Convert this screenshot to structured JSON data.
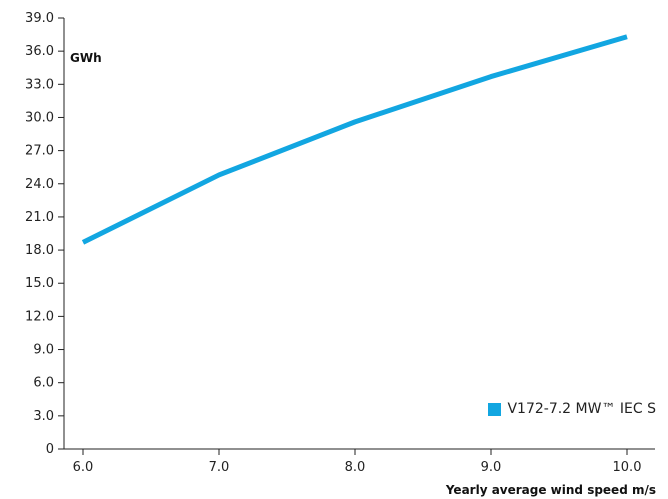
{
  "chart_data": {
    "type": "line",
    "ylabel": "GWh",
    "xlabel": "Yearly average wind speed m/s",
    "x": [
      6.0,
      7.0,
      8.0,
      9.0,
      10.0
    ],
    "x_tick_labels": [
      "6.0",
      "7.0",
      "8.0",
      "9.0",
      "10.0"
    ],
    "y_tick_labels": [
      "0",
      "3.0",
      "6.0",
      "9.0",
      "12.0",
      "15.0",
      "18.0",
      "21.0",
      "24.0",
      "27.0",
      "30.0",
      "33.0",
      "36.0",
      "39.0"
    ],
    "y_ticks": [
      0,
      3,
      6,
      9,
      12,
      15,
      18,
      21,
      24,
      27,
      30,
      33,
      36,
      39
    ],
    "xlim": [
      6.0,
      10.0
    ],
    "ylim": [
      0,
      39
    ],
    "grid": false,
    "legend_position": "bottom-right",
    "series": [
      {
        "name": "V172-7.2 MW™ IEC S",
        "color": "#12a6e1",
        "values": [
          18.7,
          24.8,
          29.6,
          33.7,
          37.3
        ]
      }
    ]
  }
}
